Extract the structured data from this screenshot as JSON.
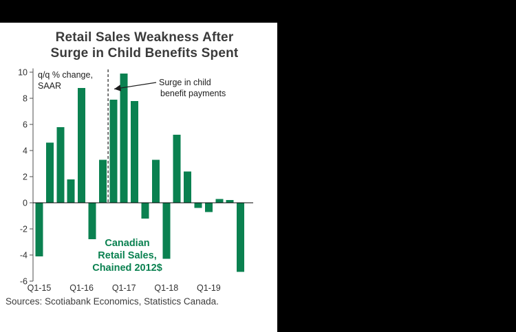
{
  "theme": {
    "background": "#000000",
    "panel": "#ffffff",
    "accent_green": "#0a8150",
    "text_dark": "#3a3a3a",
    "axis_color": "#4d4d4d"
  },
  "chart": {
    "title_line1": "Retail Sales Weakness After",
    "title_line2": "Surge in Child Benefits Spent",
    "axis_note_line1": "q/q % change,",
    "axis_note_line2": "SAAR",
    "annotation_line1": "Surge in child",
    "annotation_line2": "benefit payments",
    "series_label_line1": "Canadian",
    "series_label_line2": "Retail Sales,",
    "series_label_line3": "Chained 2012$",
    "sources": "Sources: Scotiabank Economics, Statistics Canada."
  },
  "chart_data": {
    "type": "bar",
    "title": "Retail Sales Weakness After Surge in Child Benefits Spent",
    "unit_note": "q/q % change, SAAR",
    "series_name": "Canadian Retail Sales, Chained 2012$",
    "annotation": "Surge in child benefit payments",
    "x": [
      "Q1-15",
      "Q2-15",
      "Q3-15",
      "Q4-15",
      "Q1-16",
      "Q2-16",
      "Q3-16",
      "Q4-16",
      "Q1-17",
      "Q2-17",
      "Q3-17",
      "Q4-17",
      "Q1-18",
      "Q2-18",
      "Q3-18",
      "Q4-18",
      "Q1-19",
      "Q2-19",
      "Q3-19",
      "Q4-19"
    ],
    "values": [
      -4.1,
      4.6,
      5.8,
      1.8,
      8.8,
      -2.8,
      3.3,
      7.9,
      9.9,
      7.8,
      -1.2,
      3.3,
      -4.3,
      5.2,
      2.4,
      -0.4,
      -0.7,
      0.3,
      0.2,
      -5.3
    ],
    "y_ticks": [
      10,
      8,
      6,
      4,
      2,
      0,
      -2,
      -4,
      -6
    ],
    "ylim": [
      -6,
      10.3
    ],
    "x_tick_labels": [
      "Q1-15",
      "Q1-16",
      "Q1-17",
      "Q1-18",
      "Q1-19"
    ],
    "dashed_line_after_index": 6,
    "grid": false,
    "legend": "none",
    "bar_color": "#0a8150",
    "sources": "Sources: Scotiabank Economics, Statistics Canada."
  }
}
